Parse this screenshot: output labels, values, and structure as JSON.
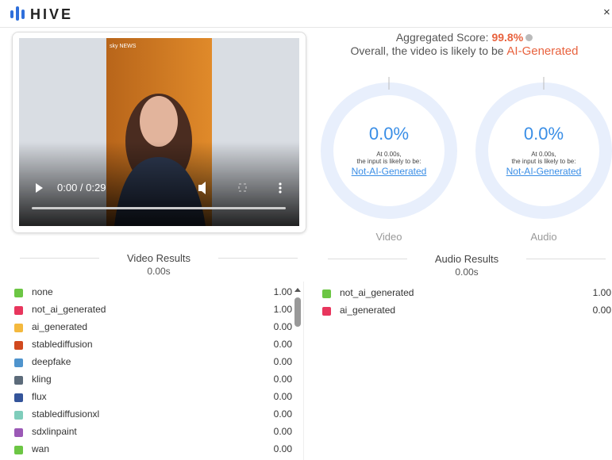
{
  "header": {
    "logo": "HIVE",
    "close": "×"
  },
  "player": {
    "watermark": "sky NEWS",
    "time": "0:00 / 0:29"
  },
  "summary": {
    "label": "Aggregated Score:",
    "score": "99.8%",
    "sentence": "Overall, the video is likely to be",
    "verdict": "AI-Generated"
  },
  "gauges": [
    {
      "value": "0.0%",
      "time": "At 0.00s,",
      "line": "the input is likely to be:",
      "verdict": "Not-AI-Generated",
      "label": "Video"
    },
    {
      "value": "0.0%",
      "time": "At 0.00s,",
      "line": "the input is likely to be:",
      "verdict": "Not-AI-Generated",
      "label": "Audio"
    }
  ],
  "video_results": {
    "title": "Video Results",
    "time": "0.00s",
    "rows": [
      {
        "name": "none",
        "score": "1.00",
        "color": "#6cc644"
      },
      {
        "name": "not_ai_generated",
        "score": "1.00",
        "color": "#e8365d"
      },
      {
        "name": "ai_generated",
        "score": "0.00",
        "color": "#f4b93e"
      },
      {
        "name": "stablediffusion",
        "score": "0.00",
        "color": "#d1491e"
      },
      {
        "name": "deepfake",
        "score": "0.00",
        "color": "#4f94cd"
      },
      {
        "name": "kling",
        "score": "0.00",
        "color": "#5c6b7a"
      },
      {
        "name": "flux",
        "score": "0.00",
        "color": "#34549a"
      },
      {
        "name": "stablediffusionxl",
        "score": "0.00",
        "color": "#7fcdbb"
      },
      {
        "name": "sdxlinpaint",
        "score": "0.00",
        "color": "#9b59b6"
      },
      {
        "name": "wan",
        "score": "0.00",
        "color": "#6cc644"
      }
    ]
  },
  "audio_results": {
    "title": "Audio Results",
    "time": "0.00s",
    "rows": [
      {
        "name": "not_ai_generated",
        "score": "1.00",
        "color": "#6cc644"
      },
      {
        "name": "ai_generated",
        "score": "0.00",
        "color": "#e8365d"
      }
    ]
  }
}
